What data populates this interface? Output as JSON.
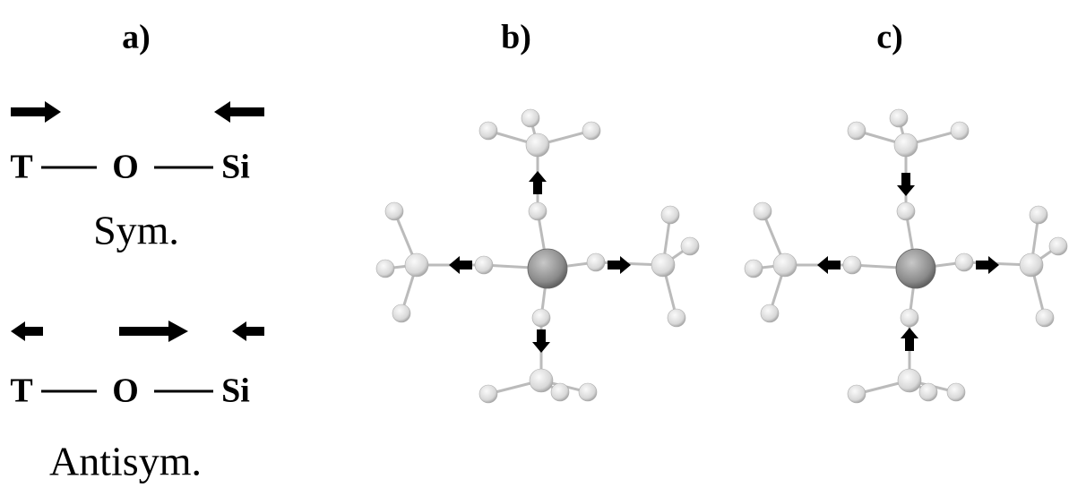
{
  "panels": [
    {
      "label": "a)"
    },
    {
      "label": "b)"
    },
    {
      "label": "c)"
    }
  ],
  "symmetric": {
    "atoms": [
      "T",
      "O",
      "Si"
    ],
    "label": "Sym."
  },
  "antisymmetric": {
    "atoms": [
      "T",
      "O",
      "Si"
    ],
    "label": "Antisym."
  }
}
